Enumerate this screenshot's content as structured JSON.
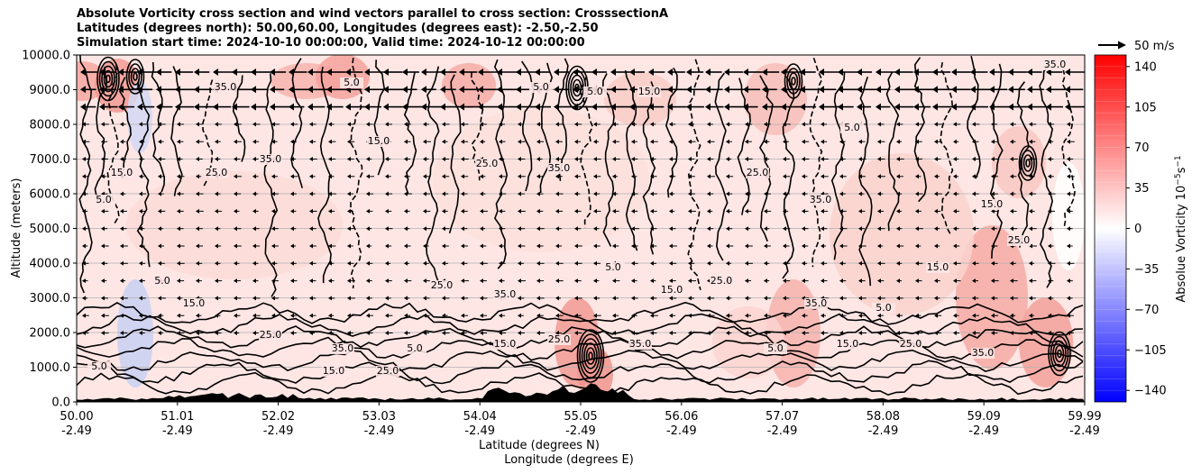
{
  "chart_data": {
    "type": "heatmap",
    "title_lines": [
      "Absolute Vorticity cross section and wind vectors parallel to cross section: CrosssectionA",
      "Latitudes (degrees north): 50.00,60.00, Longitudes (degrees east): -2.50,-2.50",
      "Simulation start time: 2024-10-10 00:00:00, Valid time: 2024-10-12 00:00:00"
    ],
    "xlabel_lines": [
      "Latitude (degrees N)",
      "Longitude (degrees E)"
    ],
    "ylabel": "Altitude (meters)",
    "x_ticks": [
      {
        "lat": "50.00",
        "lon": "-2.49"
      },
      {
        "lat": "51.01",
        "lon": "-2.49"
      },
      {
        "lat": "52.02",
        "lon": "-2.49"
      },
      {
        "lat": "53.03",
        "lon": "-2.49"
      },
      {
        "lat": "54.04",
        "lon": "-2.49"
      },
      {
        "lat": "55.05",
        "lon": "-2.49"
      },
      {
        "lat": "56.06",
        "lon": "-2.49"
      },
      {
        "lat": "57.07",
        "lon": "-2.49"
      },
      {
        "lat": "58.08",
        "lon": "-2.49"
      },
      {
        "lat": "59.09",
        "lon": "-2.49"
      },
      {
        "lat": "59.99",
        "lon": "-2.49"
      }
    ],
    "y_ticks": [
      "0.0",
      "1000.0",
      "2000.0",
      "3000.0",
      "4000.0",
      "5000.0",
      "6000.0",
      "7000.0",
      "8000.0",
      "9000.0",
      "10000.0"
    ],
    "ylim": [
      0,
      10000
    ],
    "grid": "horizontal",
    "colorbar": {
      "label": "Absolue Vorticity 10",
      "label_exp1": "−5",
      "label_mid": "s",
      "label_exp2": "−1",
      "ticks": [
        "140",
        "105",
        "70",
        "35",
        "0",
        "−35",
        "−70",
        "−105",
        "−140"
      ],
      "range": [
        -150,
        150
      ],
      "colormap": "bwr"
    },
    "quiver_key": "50 m/s",
    "contour_labels": [
      "5.0",
      "15.0",
      "25.0",
      "35.0"
    ],
    "colors": {
      "positive": "#ff0000",
      "negative": "#0000ff",
      "neutral": "#ffffff",
      "terrain": "#000000"
    }
  }
}
